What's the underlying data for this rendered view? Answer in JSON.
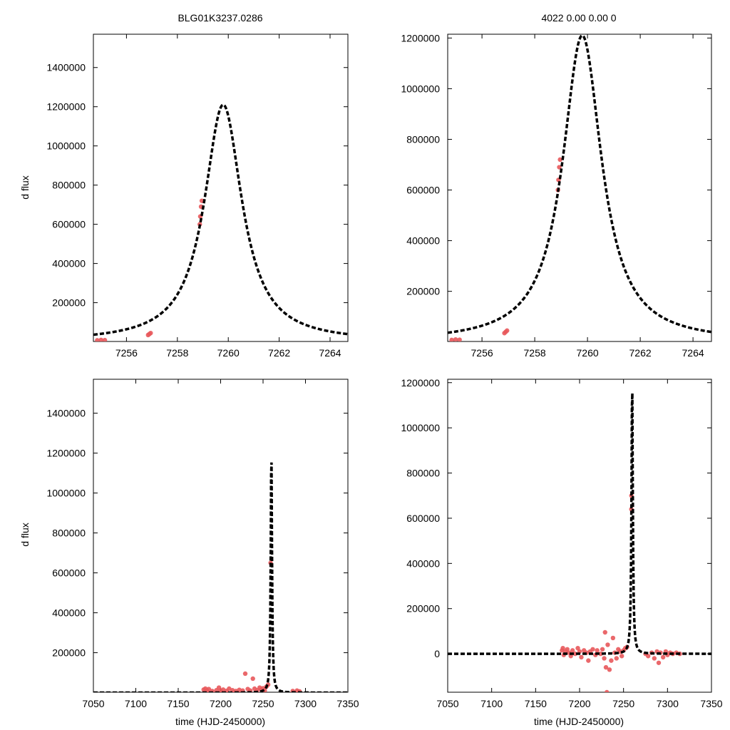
{
  "colors": {
    "model": "#000000",
    "points": "#e8585b",
    "axes": "#000000"
  },
  "chart_data": [
    {
      "id": "top-left",
      "type": "scatter",
      "title": "BLG01K3237.0286",
      "xlabel": "",
      "ylabel": "d flux",
      "xlim": [
        7254.7,
        7264.7
      ],
      "ylim": [
        2000,
        1570000
      ],
      "xticks": [
        7256,
        7258,
        7260,
        7262,
        7264
      ],
      "yticks": [
        200000,
        400000,
        600000,
        800000,
        1000000,
        1200000,
        1400000
      ],
      "grid": false,
      "series": [
        {
          "kind": "points",
          "points": [
            [
              7254.85,
              8000
            ],
            [
              7255.0,
              10000
            ],
            [
              7255.15,
              9000
            ],
            [
              7256.85,
              35000
            ],
            [
              7256.9,
              40000
            ],
            [
              7256.95,
              45000
            ],
            [
              7258.88,
              600000
            ],
            [
              7258.9,
              640000
            ],
            [
              7258.93,
              690000
            ],
            [
              7258.96,
              720000
            ]
          ]
        },
        {
          "kind": "model",
          "peak_time": 7259.8,
          "peak_flux": 1210000,
          "time_scale": 0.9
        }
      ]
    },
    {
      "id": "top-right",
      "type": "scatter",
      "title": "4022  0.00  0.00  0",
      "xlabel": "",
      "ylabel": "",
      "xlim": [
        7254.7,
        7264.7
      ],
      "ylim": [
        2000,
        1215000
      ],
      "xticks": [
        7256,
        7258,
        7260,
        7262,
        7264
      ],
      "yticks": [
        200000,
        400000,
        600000,
        800000,
        1000000,
        1200000
      ],
      "grid": false,
      "series": [
        {
          "kind": "points",
          "points": [
            [
              7254.85,
              8000
            ],
            [
              7255.0,
              10000
            ],
            [
              7255.15,
              9000
            ],
            [
              7256.85,
              35000
            ],
            [
              7256.9,
              40000
            ],
            [
              7256.95,
              45000
            ],
            [
              7258.88,
              600000
            ],
            [
              7258.9,
              640000
            ],
            [
              7258.93,
              690000
            ],
            [
              7258.96,
              720000
            ]
          ]
        },
        {
          "kind": "model",
          "peak_time": 7259.8,
          "peak_flux": 1210000,
          "time_scale": 0.9
        }
      ]
    },
    {
      "id": "bottom-left",
      "type": "scatter",
      "title": "",
      "xlabel": "time (HJD-2450000)",
      "ylabel": "d flux",
      "xlim": [
        7050,
        7350
      ],
      "ylim": [
        2000,
        1570000
      ],
      "xticks": [
        7050,
        7100,
        7150,
        7200,
        7250,
        7300,
        7350
      ],
      "yticks": [
        200000,
        400000,
        600000,
        800000,
        1000000,
        1200000,
        1400000
      ],
      "grid": false,
      "series": [
        {
          "kind": "points",
          "points": [
            [
              7180,
              15000
            ],
            [
              7182,
              20000
            ],
            [
              7184,
              10000
            ],
            [
              7186,
              18000
            ],
            [
              7190,
              8000
            ],
            [
              7195,
              12000
            ],
            [
              7198,
              25000
            ],
            [
              7200,
              10000
            ],
            [
              7203,
              15000
            ],
            [
              7207,
              9000
            ],
            [
              7210,
              20000
            ],
            [
              7214,
              12000
            ],
            [
              7218,
              8000
            ],
            [
              7222,
              14000
            ],
            [
              7226,
              10000
            ],
            [
              7229,
              95000
            ],
            [
              7232,
              18000
            ],
            [
              7235,
              10000
            ],
            [
              7238,
              70000
            ],
            [
              7240,
              20000
            ],
            [
              7243,
              12000
            ],
            [
              7246,
              25000
            ],
            [
              7248,
              15000
            ],
            [
              7250,
              22000
            ],
            [
              7252,
              10000
            ],
            [
              7254,
              30000
            ],
            [
              7256,
              40000
            ],
            [
              7258.9,
              650000
            ],
            [
              7285,
              8000
            ],
            [
              7290,
              10000
            ],
            [
              7293,
              6000
            ]
          ]
        },
        {
          "kind": "model",
          "peak_time": 7259.8,
          "peak_flux": 1210000,
          "time_scale": 0.9
        }
      ]
    },
    {
      "id": "bottom-right",
      "type": "scatter",
      "title": "",
      "xlabel": "time (HJD-2450000)",
      "ylabel": "",
      "xlim": [
        7050,
        7350
      ],
      "ylim": [
        -170000,
        1215000
      ],
      "xticks": [
        7050,
        7100,
        7150,
        7200,
        7250,
        7300,
        7350
      ],
      "yticks": [
        0,
        200000,
        400000,
        600000,
        800000,
        1000000,
        1200000
      ],
      "grid": false,
      "series": [
        {
          "kind": "points",
          "points": [
            [
              7180,
              15000
            ],
            [
              7181,
              25000
            ],
            [
              7182,
              -5000
            ],
            [
              7184,
              10000
            ],
            [
              7186,
              20000
            ],
            [
              7188,
              5000
            ],
            [
              7190,
              -10000
            ],
            [
              7192,
              15000
            ],
            [
              7195,
              0
            ],
            [
              7198,
              25000
            ],
            [
              7200,
              10000
            ],
            [
              7202,
              -15000
            ],
            [
              7205,
              15000
            ],
            [
              7208,
              5000
            ],
            [
              7210,
              -30000
            ],
            [
              7212,
              10000
            ],
            [
              7215,
              20000
            ],
            [
              7218,
              -5000
            ],
            [
              7220,
              15000
            ],
            [
              7224,
              0
            ],
            [
              7226,
              20000
            ],
            [
              7228,
              -20000
            ],
            [
              7229,
              95000
            ],
            [
              7230,
              -60000
            ],
            [
              7231,
              -170000
            ],
            [
              7232,
              40000
            ],
            [
              7234,
              -70000
            ],
            [
              7236,
              -30000
            ],
            [
              7238,
              70000
            ],
            [
              7240,
              5000
            ],
            [
              7242,
              -20000
            ],
            [
              7244,
              20000
            ],
            [
              7246,
              10000
            ],
            [
              7248,
              -10000
            ],
            [
              7250,
              15000
            ],
            [
              7252,
              25000
            ],
            [
              7254,
              30000
            ],
            [
              7258.9,
              640000
            ],
            [
              7258.95,
              700000
            ],
            [
              7275,
              0
            ],
            [
              7278,
              -10000
            ],
            [
              7282,
              5000
            ],
            [
              7285,
              -20000
            ],
            [
              7288,
              10000
            ],
            [
              7290,
              -40000
            ],
            [
              7292,
              5000
            ],
            [
              7295,
              -15000
            ],
            [
              7298,
              10000
            ],
            [
              7300,
              -5000
            ],
            [
              7303,
              5000
            ],
            [
              7306,
              0
            ],
            [
              7310,
              5000
            ],
            [
              7314,
              0
            ]
          ]
        },
        {
          "kind": "model",
          "peak_time": 7259.8,
          "peak_flux": 1210000,
          "time_scale": 0.9
        }
      ]
    }
  ]
}
